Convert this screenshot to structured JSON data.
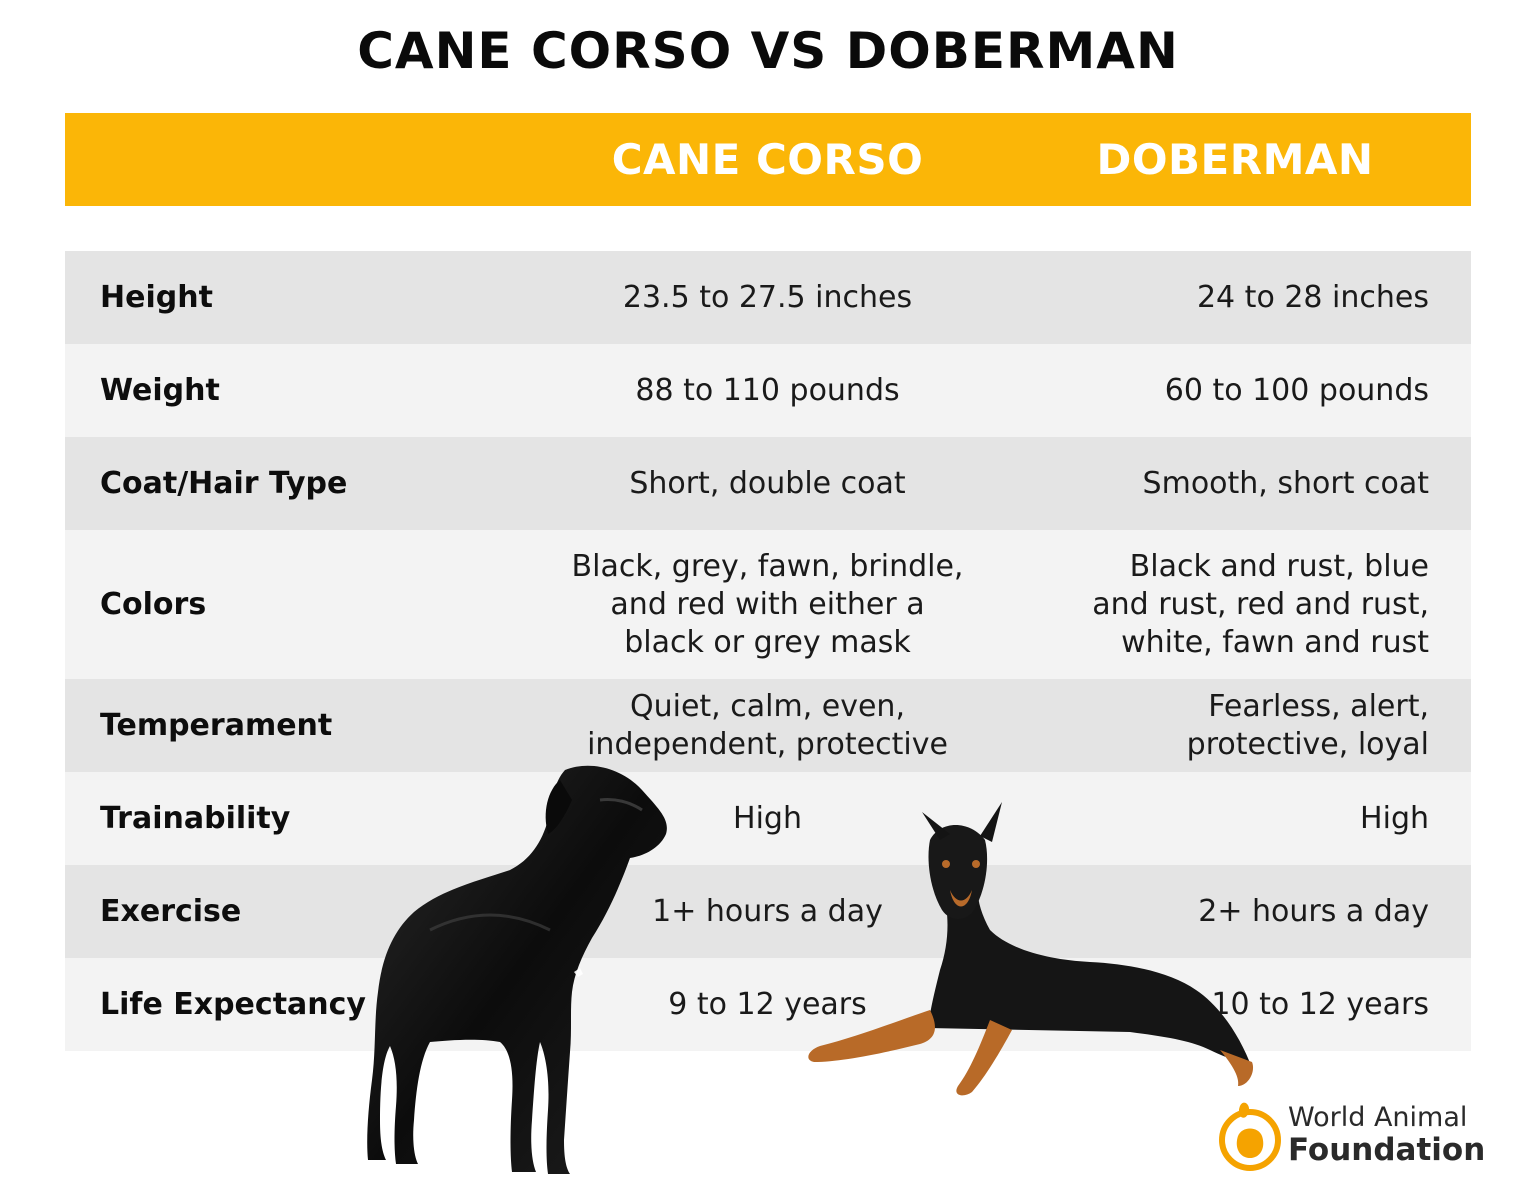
{
  "title": "CANE CORSO VS DOBERMAN",
  "columns": [
    "CANE CORSO",
    "DOBERMAN"
  ],
  "rows": [
    {
      "label": "Height",
      "cane_corso": "23.5 to 27.5 inches",
      "doberman": "24 to 28 inches"
    },
    {
      "label": "Weight",
      "cane_corso": "88 to 110 pounds",
      "doberman": "60 to 100 pounds"
    },
    {
      "label": "Coat/Hair Type",
      "cane_corso": "Short, double coat",
      "doberman": "Smooth, short coat"
    },
    {
      "label": "Colors",
      "cane_corso": "Black, grey, fawn, brindle,\nand red with either a\nblack or grey mask",
      "doberman": "Black and rust, blue\nand rust, red and rust,\nwhite, fawn and rust"
    },
    {
      "label": "Temperament",
      "cane_corso": "Quiet, calm, even,\nindependent, protective",
      "doberman": "Fearless, alert,\nprotective, loyal"
    },
    {
      "label": "Trainability",
      "cane_corso": "High",
      "doberman": "High"
    },
    {
      "label": "Exercise",
      "cane_corso": "1+ hours a day",
      "doberman": "2+ hours a day"
    },
    {
      "label": "Life Expectancy",
      "cane_corso": "9 to 12 years",
      "doberman": "10 to 12 years"
    }
  ],
  "logo": {
    "line1": "World Animal",
    "line2": "Foundation"
  },
  "colors": {
    "accent": "#fbb607",
    "row_dark": "#e4e4e4",
    "row_light": "#f3f3f3"
  },
  "images": {
    "left": "cane-corso-dog",
    "right": "doberman-dog"
  }
}
